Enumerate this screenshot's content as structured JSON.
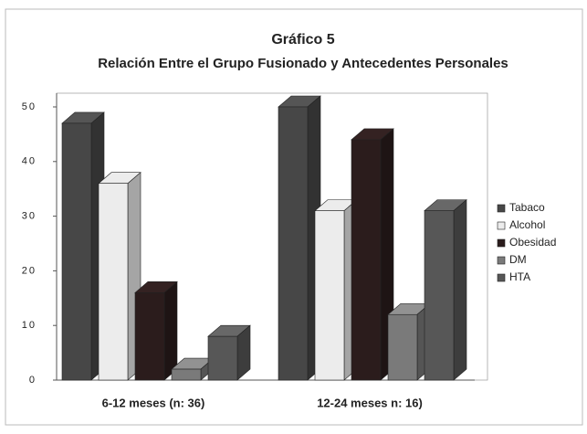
{
  "chart_data": {
    "type": "bar3d",
    "title": "Gráfico 5",
    "subtitle": "Relación Entre el Grupo Fusionado y Antecedentes Personales",
    "categories": [
      "6-12 meses (n: 36)",
      "12-24 meses n: 16)"
    ],
    "series": [
      {
        "name": "Tabaco",
        "color": "#474747",
        "values": [
          47,
          50
        ]
      },
      {
        "name": "Alcohol",
        "color": "#ececec",
        "values": [
          36,
          31
        ]
      },
      {
        "name": "Obesidad",
        "color": "#2b1c1c",
        "values": [
          16,
          44
        ]
      },
      {
        "name": "DM",
        "color": "#7a7a7a",
        "values": [
          2,
          12
        ]
      },
      {
        "name": "HTA",
        "color": "#575757",
        "values": [
          8,
          31
        ]
      }
    ],
    "ylim": [
      0,
      50
    ],
    "yticks": [
      0,
      10,
      20,
      30,
      40,
      50
    ],
    "legend": "right"
  }
}
